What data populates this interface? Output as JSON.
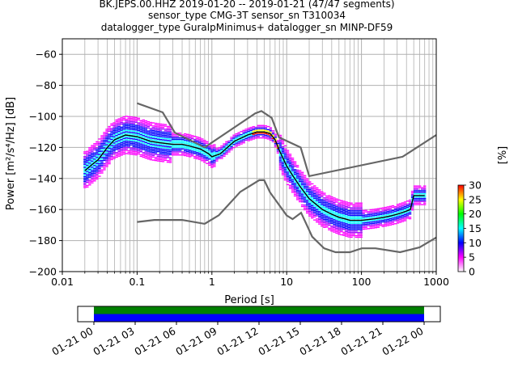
{
  "title_lines": [
    "BK.JEPS.00.HHZ   2019-01-20 -- 2019-01-21  (47/47 segments)",
    "sensor_type CMG-3T sensor_sn T310034",
    "datalogger_type GuralpMinimus+ datalogger_sn MINP-DF59"
  ],
  "chart_data": [
    {
      "type": "heatmap",
      "subtype": "probabilistic power spectral density",
      "xlabel": "Period [s]",
      "ylabel": "Power [m²/s⁴/Hz] [dB]",
      "xscale": "log",
      "xlim": [
        0.01,
        1000
      ],
      "ylim": [
        -200,
        -50
      ],
      "x_ticks": [
        "0.01",
        "0.1",
        "1",
        "10",
        "100",
        "1000"
      ],
      "y_ticks": [
        "−60",
        "−80",
        "−100",
        "−120",
        "−140",
        "−160",
        "−180",
        "−200"
      ],
      "grid": true,
      "colorbar": {
        "label": "[%]",
        "range": [
          0,
          30
        ],
        "ticks": [
          "0",
          "5",
          "10",
          "15",
          "20",
          "25",
          "30"
        ],
        "colormap": [
          "#ffffff",
          "#ff00ff",
          "#0000ff",
          "#00ffff",
          "#00ff00",
          "#ffff00",
          "#ff0000"
        ]
      },
      "mean_curve": {
        "color": "#000000",
        "x": [
          0.02,
          0.025,
          0.03,
          0.04,
          0.05,
          0.07,
          0.1,
          0.15,
          0.2,
          0.3,
          0.4,
          0.5,
          0.7,
          0.9,
          1.0,
          1.3,
          2,
          3,
          4,
          5,
          6,
          7,
          8,
          10,
          12,
          15,
          20,
          30,
          40,
          50,
          60,
          70,
          80,
          100,
          150,
          200,
          250,
          300,
          350,
          400,
          450,
          500,
          700
        ],
        "y": [
          -135,
          -131,
          -128,
          -120,
          -115,
          -112,
          -113,
          -116,
          -117,
          -118,
          -118,
          -119,
          -121,
          -124,
          -126,
          -124,
          -116,
          -112,
          -110,
          -110,
          -111,
          -115,
          -122,
          -132,
          -138,
          -145,
          -153,
          -160,
          -163,
          -165,
          -166,
          -167,
          -167,
          -167,
          -166,
          -165,
          -164,
          -163,
          -162,
          -161,
          -160,
          -151,
          -151
        ]
      },
      "noise_models": [
        {
          "name": "high",
          "color": "#666666",
          "x": [
            0.1,
            0.22,
            0.32,
            0.8,
            3.8,
            4.6,
            6.3,
            7.9,
            15.4,
            20,
            354.8,
            1000
          ],
          "y": [
            -91.5,
            -97.4,
            -110.5,
            -120,
            -98,
            -96.5,
            -101,
            -113.5,
            -120,
            -138.5,
            -126,
            -112
          ]
        },
        {
          "name": "low",
          "color": "#666666",
          "x": [
            0.1,
            0.17,
            0.4,
            0.8,
            1.24,
            2.4,
            4.3,
            5,
            6,
            10,
            12,
            15.6,
            21.9,
            31.6,
            45,
            70,
            101,
            154,
            328,
            600,
            1000
          ],
          "y": [
            -168,
            -166.7,
            -166.7,
            -169.2,
            -163.7,
            -148.6,
            -141.1,
            -141.1,
            -149,
            -163.8,
            -166.2,
            -162.1,
            -177.5,
            -185,
            -187.5,
            -187.5,
            -185,
            -185,
            -187.5,
            -184.4,
            -178
          ]
        }
      ]
    },
    {
      "type": "timeline",
      "xlim": [
        "01-21 00",
        "01-22 00"
      ],
      "x_ticks": [
        "01-21 00",
        "01-21 03",
        "01-21 06",
        "01-21 09",
        "01-21 12",
        "01-21 15",
        "01-21 18",
        "01-21 21",
        "01-22 00"
      ],
      "data_covered": [
        [
          0,
          1
        ]
      ],
      "bars": [
        {
          "name": "",
          "color": "#008000"
        },
        {
          "name": "",
          "color": "#0000ff"
        }
      ]
    }
  ]
}
